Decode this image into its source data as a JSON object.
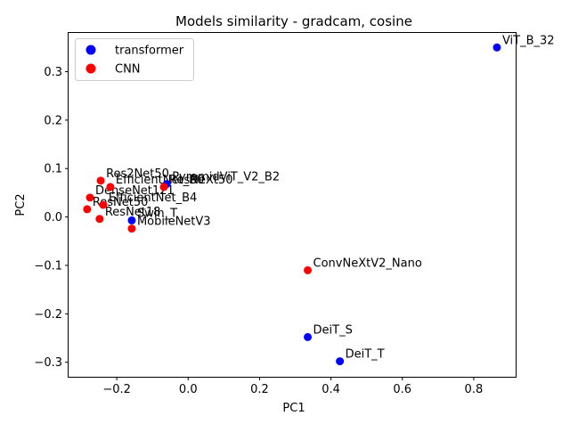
{
  "chart_data": {
    "type": "scatter",
    "title": "Models similarity - gradcam, cosine",
    "xlabel": "PC1",
    "ylabel": "PC2",
    "xlim": [
      -0.335,
      0.92
    ],
    "ylim": [
      -0.33,
      0.38
    ],
    "xticks": [
      -0.2,
      0.0,
      0.2,
      0.4,
      0.6,
      0.8
    ],
    "xtick_labels": [
      "−0.2",
      "0.0",
      "0.2",
      "0.4",
      "0.6",
      "0.8"
    ],
    "yticks": [
      -0.3,
      -0.2,
      -0.1,
      0.0,
      0.1,
      0.2,
      0.3
    ],
    "ytick_labels": [
      "−0.3",
      "−0.2",
      "−0.1",
      "0.0",
      "0.1",
      "0.2",
      "0.3"
    ],
    "grid": false,
    "legend_position": "top-left",
    "series": [
      {
        "name": "transformer",
        "color": "#0000ff",
        "points": [
          {
            "label": "ViT_B_32",
            "x": 0.865,
            "y": 0.35
          },
          {
            "label": "DeiT_S",
            "x": 0.335,
            "y": -0.248
          },
          {
            "label": "DeiT_T",
            "x": 0.425,
            "y": -0.298
          },
          {
            "label": "Swin_T",
            "x": -0.158,
            "y": -0.007
          },
          {
            "label": "PyramidViT_V2_B2",
            "x": -0.06,
            "y": 0.068
          }
        ]
      },
      {
        "name": "CNN",
        "color": "#ff0000",
        "points": [
          {
            "label": "Res2Net50",
            "x": -0.245,
            "y": 0.075
          },
          {
            "label": "EfficientNet_B0",
            "x": -0.218,
            "y": 0.062
          },
          {
            "label": "ResNeXt50",
            "x": -0.068,
            "y": 0.062
          },
          {
            "label": "DenseNet121",
            "x": -0.275,
            "y": 0.04
          },
          {
            "label": "EfficientNet_B4",
            "x": -0.238,
            "y": 0.025
          },
          {
            "label": "ResNet50",
            "x": -0.283,
            "y": 0.016
          },
          {
            "label": "ResNet18",
            "x": -0.248,
            "y": -0.004
          },
          {
            "label": "MobileNetV3",
            "x": -0.158,
            "y": -0.024
          },
          {
            "label": "ConvNeXtV2_Nano",
            "x": 0.335,
            "y": -0.11
          }
        ]
      }
    ]
  }
}
